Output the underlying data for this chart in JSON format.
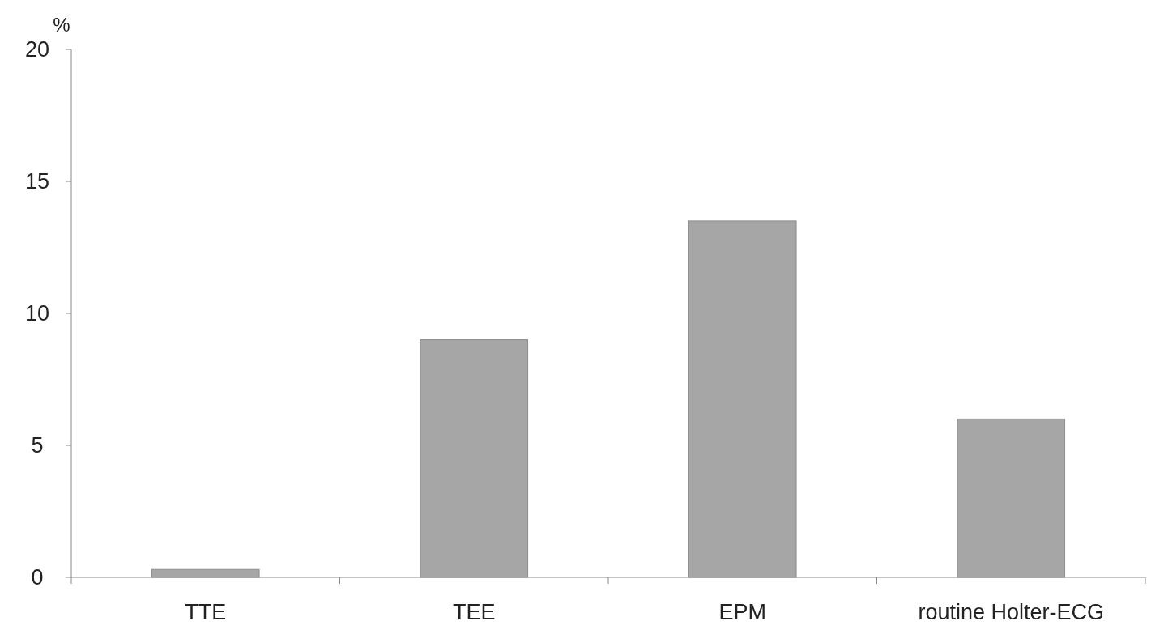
{
  "chart_data": {
    "type": "bar",
    "ylabel": "%",
    "categories": [
      "TTE",
      "TEE",
      "EPM",
      "routine Holter-ECG"
    ],
    "values": [
      0.3,
      9,
      13.5,
      6
    ],
    "color": "#a6a6a6",
    "ylim": [
      0,
      20
    ],
    "yticks": [
      0,
      5,
      10,
      15,
      20
    ],
    "grid": false
  }
}
